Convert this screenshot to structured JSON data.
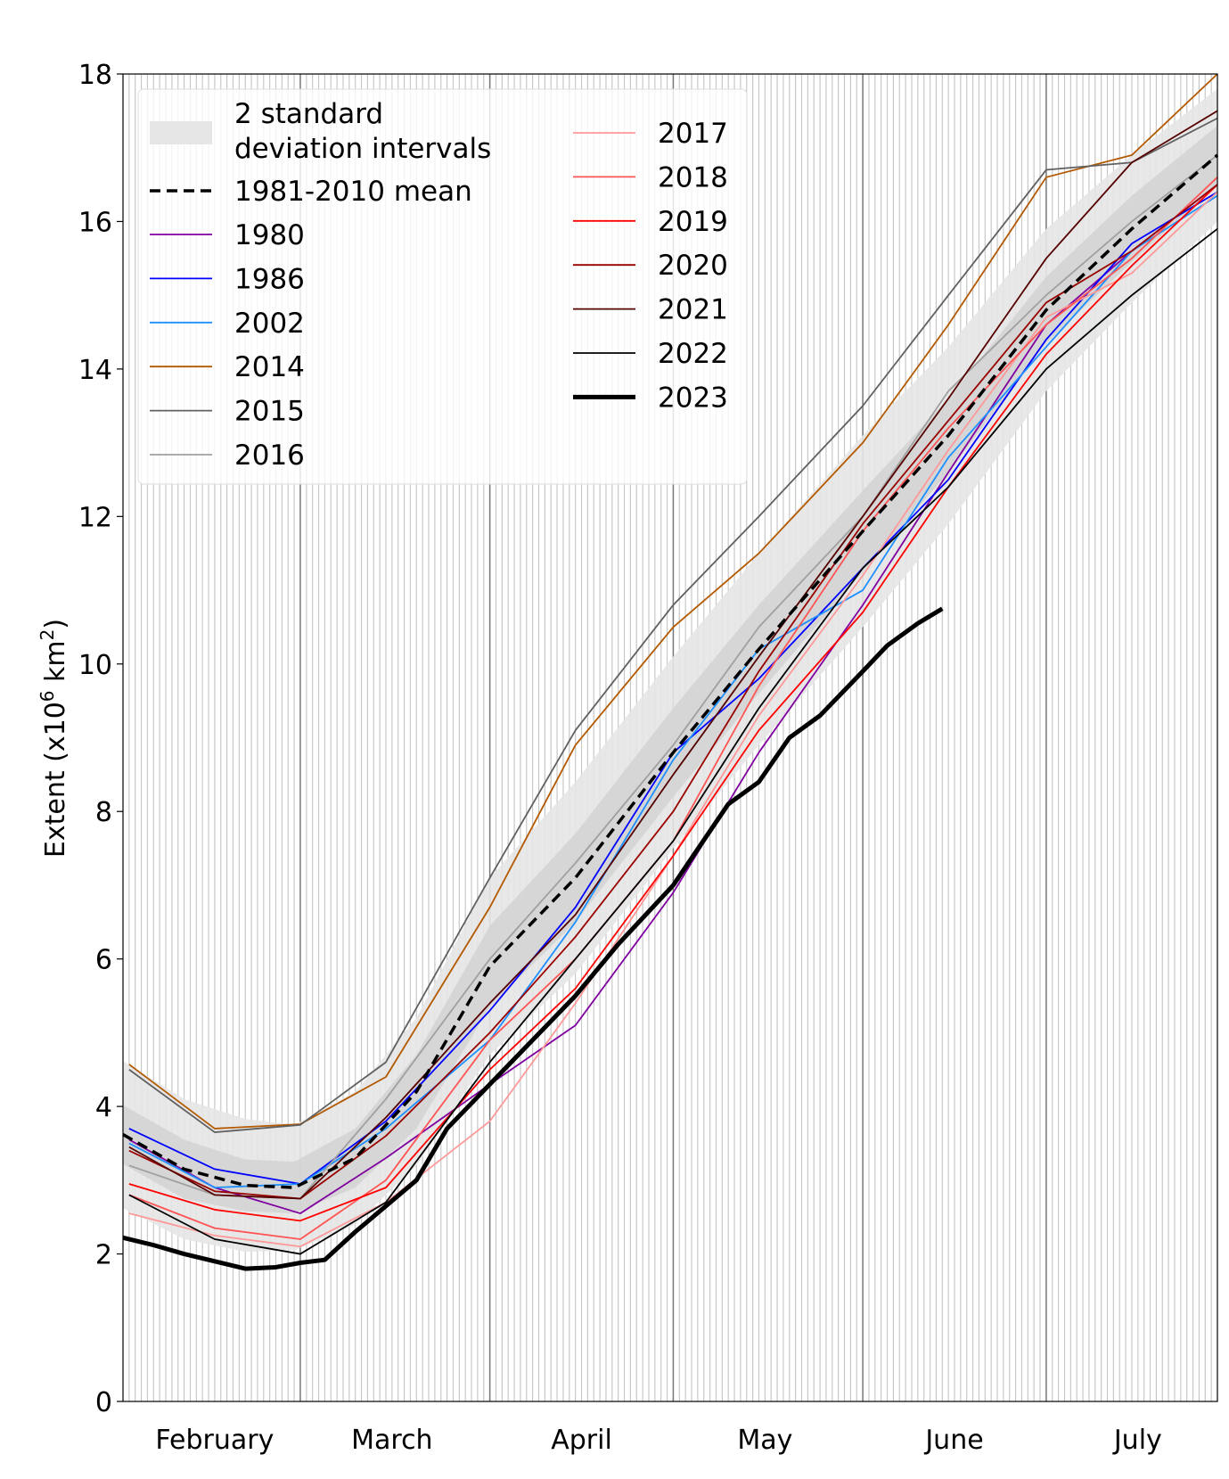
{
  "chart_data": {
    "type": "line",
    "title": "",
    "xlabel": "",
    "ylabel": "Extent (x10",
    "ylabel_sup1": "6",
    "ylabel_mid": " km",
    "ylabel_sup2": "2",
    "ylabel_end": ")",
    "ylim": [
      0,
      18
    ],
    "yticks": [
      "0",
      "2",
      "4",
      "6",
      "8",
      "10",
      "12",
      "14",
      "16",
      "18"
    ],
    "xlim": [
      "01-31",
      "07-29"
    ],
    "xtick_labels": [
      {
        "label": "February",
        "date": "02-15"
      },
      {
        "label": "March",
        "date": "03-16"
      },
      {
        "label": "April",
        "date": "04-16"
      },
      {
        "label": "May",
        "date": "05-16"
      },
      {
        "label": "June",
        "date": "06-16"
      },
      {
        "label": "July",
        "date": "07-16"
      }
    ],
    "month_starts": [
      "03-01",
      "04-01",
      "05-01",
      "06-01",
      "07-01"
    ],
    "grid": "daily vertical lines",
    "legend_placement": "upper-left",
    "x": [
      "02-01",
      "02-15",
      "03-01",
      "03-15",
      "04-01",
      "04-15",
      "05-01",
      "05-15",
      "06-01",
      "06-15",
      "07-01",
      "07-15",
      "07-29"
    ],
    "band": {
      "name": "2 standard\ndeviation intervals",
      "label_line1": "2 standard",
      "label_line2": "deviation intervals",
      "color": "#e6e6e6",
      "inner_color": "#d2d2d2"
    },
    "mean": {
      "name": "1981-2010 mean",
      "color": "#000000",
      "x": [
        "01-31",
        "02-10",
        "02-20",
        "02-28",
        "03-10",
        "03-20",
        "04-01",
        "04-15",
        "05-01",
        "05-15",
        "06-01",
        "06-15",
        "07-01",
        "07-15",
        "07-29"
      ],
      "values": [
        3.62,
        3.15,
        2.93,
        2.9,
        3.3,
        4.2,
        5.9,
        7.1,
        8.8,
        10.2,
        11.8,
        13.1,
        14.8,
        15.9,
        16.9
      ],
      "outer_halfwidth": [
        1.0,
        0.95,
        0.9,
        0.85,
        0.9,
        1.0,
        1.2,
        1.3,
        1.3,
        1.3,
        1.3,
        1.2,
        1.1,
        1.0,
        0.9
      ],
      "inner_halfwidth": [
        0.4,
        0.4,
        0.35,
        0.35,
        0.4,
        0.5,
        0.55,
        0.6,
        0.6,
        0.6,
        0.55,
        0.5,
        0.45,
        0.45,
        0.4
      ]
    },
    "series": [
      {
        "name": "1980",
        "color": "#8000a0",
        "values": [
          3.55,
          2.9,
          2.55,
          3.3,
          4.3,
          5.1,
          6.9,
          8.8,
          10.8,
          12.6,
          14.6,
          15.6,
          16.5
        ]
      },
      {
        "name": "1986",
        "color": "#0000ff",
        "values": [
          3.7,
          3.15,
          2.95,
          3.8,
          5.3,
          6.7,
          8.8,
          9.8,
          11.3,
          12.5,
          14.4,
          15.7,
          16.4
        ]
      },
      {
        "name": "2002",
        "color": "#1e8fff",
        "values": [
          3.5,
          2.9,
          2.95,
          3.7,
          4.9,
          6.5,
          8.7,
          10.2,
          11.0,
          12.8,
          14.3,
          15.6,
          16.35
        ]
      },
      {
        "name": "2014",
        "color": "#b35900",
        "values": [
          4.57,
          3.7,
          3.76,
          4.4,
          6.7,
          8.9,
          10.5,
          11.5,
          13.0,
          14.6,
          16.6,
          16.9,
          18.0
        ]
      },
      {
        "name": "2015",
        "color": "#606060",
        "values": [
          4.5,
          3.65,
          3.75,
          4.6,
          7.1,
          9.1,
          10.8,
          12.0,
          13.5,
          15.0,
          16.7,
          16.8,
          17.4
        ]
      },
      {
        "name": "2016",
        "color": "#a0a0a0",
        "values": [
          3.2,
          2.8,
          2.75,
          4.1,
          6.0,
          7.3,
          8.9,
          10.5,
          12.0,
          13.7,
          15.0,
          16.0,
          16.9
        ]
      },
      {
        "name": "2017",
        "color": "#ff9999",
        "values": [
          2.55,
          2.25,
          2.1,
          2.7,
          3.8,
          5.4,
          7.4,
          9.3,
          11.2,
          12.9,
          14.7,
          15.3,
          16.4
        ]
      },
      {
        "name": "2018",
        "color": "#ff5555",
        "values": [
          2.8,
          2.35,
          2.2,
          3.0,
          4.9,
          6.0,
          7.6,
          9.7,
          11.8,
          13.2,
          14.6,
          15.5,
          16.6
        ]
      },
      {
        "name": "2019",
        "color": "#ff0000",
        "values": [
          2.95,
          2.6,
          2.45,
          2.9,
          4.5,
          5.6,
          7.4,
          9.1,
          10.7,
          12.4,
          14.2,
          15.4,
          16.5
        ]
      },
      {
        "name": "2020",
        "color": "#990000",
        "values": [
          3.4,
          2.85,
          2.75,
          3.6,
          5.0,
          6.3,
          8.0,
          9.9,
          11.9,
          13.3,
          14.9,
          15.6,
          16.5
        ]
      },
      {
        "name": "2021",
        "color": "#550000",
        "values": [
          3.45,
          2.8,
          2.75,
          3.85,
          5.4,
          6.6,
          8.5,
          10.1,
          12.0,
          13.6,
          15.5,
          16.8,
          17.5
        ]
      },
      {
        "name": "2022",
        "color": "#000000",
        "values": [
          2.8,
          2.2,
          2.0,
          2.7,
          4.6,
          6.0,
          7.6,
          9.4,
          11.3,
          12.4,
          14.0,
          15.0,
          15.9
        ]
      },
      {
        "name": "2023",
        "color": "#000000",
        "thick": true,
        "x": [
          "01-31",
          "02-05",
          "02-10",
          "02-15",
          "02-20",
          "02-25",
          "03-01",
          "03-05",
          "03-10",
          "03-15",
          "03-20",
          "03-25",
          "04-01",
          "04-08",
          "04-15",
          "04-22",
          "05-01",
          "05-10",
          "05-15",
          "05-20",
          "05-25",
          "06-01",
          "06-05",
          "06-10",
          "06-14"
        ],
        "values": [
          2.22,
          2.12,
          2.0,
          1.9,
          1.8,
          1.82,
          1.88,
          1.92,
          2.3,
          2.65,
          3.0,
          3.7,
          4.3,
          4.9,
          5.5,
          6.2,
          7.0,
          8.1,
          8.4,
          9.0,
          9.3,
          9.9,
          10.25,
          10.55,
          10.75
        ]
      }
    ]
  }
}
